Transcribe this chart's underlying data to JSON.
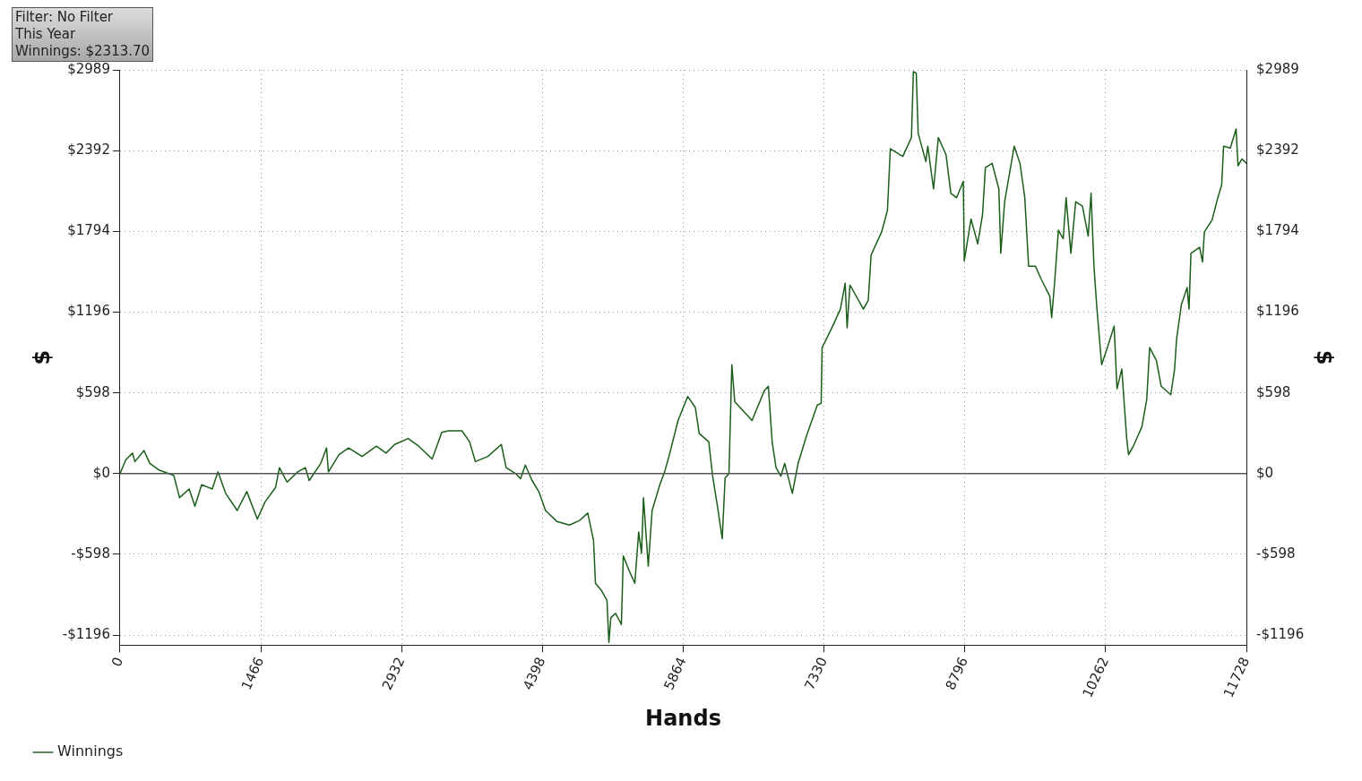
{
  "chart_data": {
    "type": "line",
    "xlabel": "Hands",
    "ylabel": "$",
    "y2label": "$",
    "annotations": [
      "Filter: No Filter",
      "This Year",
      "Winnings: $2313.70"
    ],
    "x": [
      0,
      60,
      130,
      155,
      250,
      310,
      410,
      560,
      620,
      720,
      780,
      850,
      960,
      1020,
      1100,
      1220,
      1320,
      1430,
      1510,
      1620,
      1660,
      1740,
      1850,
      1930,
      1970,
      2090,
      2150,
      2170,
      2280,
      2380,
      2520,
      2670,
      2770,
      2860,
      3000,
      3110,
      3250,
      3350,
      3420,
      3560,
      3640,
      3700,
      3830,
      3970,
      4020,
      4120,
      4170,
      4220,
      4290,
      4360,
      4430,
      4550,
      4680,
      4780,
      4870,
      4930,
      4950,
      5010,
      5070,
      5090,
      5110,
      5160,
      5220,
      5240,
      5300,
      5360,
      5400,
      5430,
      5450,
      5500,
      5540,
      5620,
      5670,
      5720,
      5810,
      5910,
      5990,
      6030,
      6130,
      6170,
      6220,
      6270,
      6300,
      6340,
      6370,
      6400,
      6540,
      6580,
      6710,
      6750,
      6790,
      6830,
      6880,
      6920,
      7000,
      7060,
      7150,
      7260,
      7300,
      7310,
      7420,
      7500,
      7550,
      7570,
      7600,
      7740,
      7790,
      7820,
      7930,
      7990,
      8020,
      8150,
      8240,
      8260,
      8290,
      8310,
      8390,
      8410,
      8470,
      8520,
      8600,
      8650,
      8710,
      8780,
      8790,
      8860,
      8930,
      8980,
      9010,
      9080,
      9150,
      9170,
      9210,
      9310,
      9370,
      9420,
      9460,
      9530,
      9590,
      9680,
      9700,
      9730,
      9770,
      9820,
      9850,
      9900,
      9950,
      10020,
      10080,
      10110,
      10140,
      10170,
      10220,
      10280,
      10350,
      10380,
      10430,
      10480,
      10500,
      10550,
      10640,
      10690,
      10720,
      10790,
      10840,
      10940,
      10980,
      11000,
      11050,
      11110,
      11130,
      11150,
      11240,
      11270,
      11290,
      11370,
      11430,
      11470,
      11490,
      11560,
      11620,
      11640,
      11680,
      11728
    ],
    "series": [
      {
        "name": "Winnings",
        "color": "#1a5e1a",
        "values": [
          0,
          102,
          152,
          89,
          171,
          76,
          25,
          -13,
          -178,
          -114,
          -241,
          -82,
          -114,
          13,
          -146,
          -273,
          -133,
          -336,
          -209,
          -102,
          44,
          -63,
          13,
          44,
          -51,
          76,
          190,
          13,
          140,
          190,
          127,
          203,
          152,
          216,
          260,
          203,
          108,
          305,
          317,
          317,
          235,
          89,
          127,
          216,
          44,
          0,
          -38,
          63,
          -51,
          -133,
          -273,
          -355,
          -381,
          -349,
          -292,
          -495,
          -812,
          -863,
          -939,
          -1250,
          -1066,
          -1034,
          -1117,
          -609,
          -717,
          -812,
          -432,
          -590,
          -178,
          -685,
          -273,
          -82,
          13,
          140,
          393,
          571,
          489,
          298,
          235,
          -19,
          -241,
          -482,
          -32,
          0,
          806,
          533,
          425,
          393,
          616,
          647,
          235,
          44,
          -19,
          76,
          -146,
          76,
          286,
          508,
          520,
          933,
          1092,
          1218,
          1409,
          1079,
          1396,
          1218,
          1282,
          1618,
          1790,
          1948,
          2405,
          2348,
          2488,
          2976,
          2964,
          2519,
          2310,
          2424,
          2107,
          2488,
          2361,
          2075,
          2043,
          2164,
          1574,
          1885,
          1701,
          1917,
          2266,
          2297,
          2107,
          1631,
          2012,
          2424,
          2297,
          2043,
          1536,
          1536,
          1441,
          1314,
          1155,
          1409,
          1802,
          1739,
          2043,
          1631,
          2012,
          1980,
          1758,
          2075,
          1536,
          1231,
          806,
          933,
          1092,
          628,
          774,
          267,
          140,
          203,
          349,
          552,
          933,
          838,
          647,
          584,
          774,
          996,
          1250,
          1377,
          1218,
          1631,
          1675,
          1567,
          1790,
          1878,
          2043,
          2139,
          2424,
          2411,
          2551,
          2278,
          2329,
          2297
        ]
      }
    ],
    "xlim": [
      0,
      11728
    ],
    "xticks": [
      0,
      1466,
      2932,
      4398,
      5864,
      7330,
      8796,
      10262,
      11728
    ],
    "ylim": [
      -1270,
      2989
    ],
    "yticks": [
      {
        "value": -1196,
        "label": "-$1196"
      },
      {
        "value": -598,
        "label": "-$598"
      },
      {
        "value": 0,
        "label": "$0"
      },
      {
        "value": 598,
        "label": "$598"
      },
      {
        "value": 1196,
        "label": "$1196"
      },
      {
        "value": 1794,
        "label": "$1794"
      },
      {
        "value": 2392,
        "label": "$2392"
      },
      {
        "value": 2989,
        "label": "$2989"
      }
    ],
    "y2lim": [
      -1270,
      2989
    ],
    "y2ticks": [
      {
        "value": -1196,
        "label": "-$1196"
      },
      {
        "value": -598,
        "label": "-$598"
      },
      {
        "value": 0,
        "label": "$0"
      },
      {
        "value": 598,
        "label": "$598"
      },
      {
        "value": 1196,
        "label": "$1196"
      },
      {
        "value": 1794,
        "label": "$1794"
      },
      {
        "value": 2392,
        "label": "$2392"
      },
      {
        "value": 2989,
        "label": "$2989"
      }
    ],
    "ref_lines": [
      {
        "axis": "y",
        "value": 0,
        "color": "#555555"
      }
    ],
    "grid": true,
    "legend": "bottom left",
    "marker": "none",
    "line_style": "solid"
  }
}
